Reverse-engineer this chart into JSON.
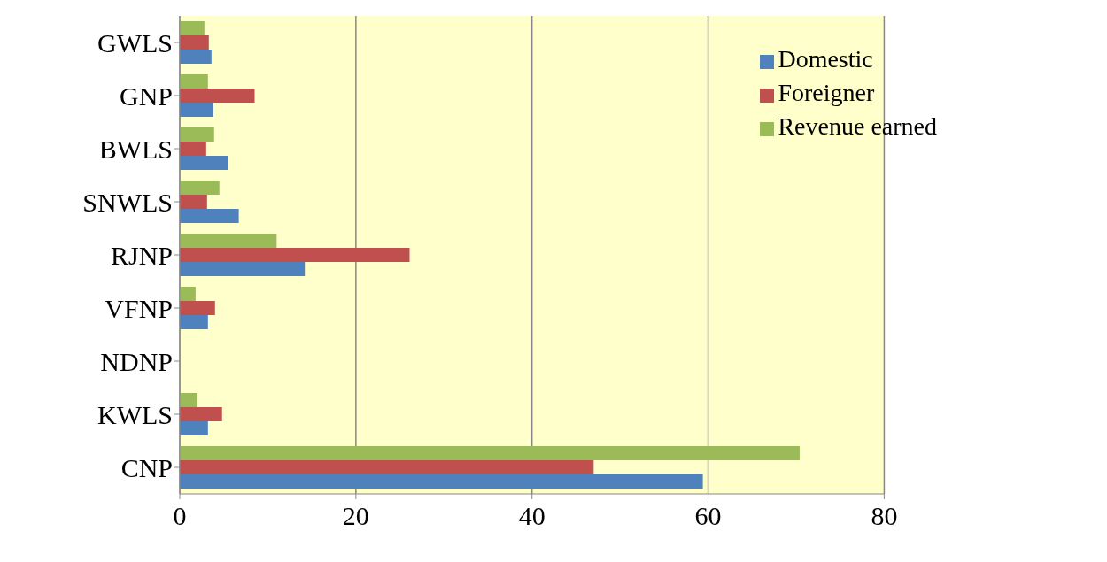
{
  "chart_data": {
    "type": "bar",
    "orientation": "horizontal",
    "categories": [
      "GWLS",
      "GNP",
      "BWLS",
      "SNWLS",
      "RJNP",
      "VFNP",
      "NDNP",
      "KWLS",
      "CNP"
    ],
    "series": [
      {
        "name": "Revenue earned",
        "color": "#9bbb59",
        "values": [
          2.8,
          3.2,
          3.9,
          4.5,
          11.0,
          1.8,
          0,
          2.0,
          70.4
        ]
      },
      {
        "name": "Foreigner",
        "color": "#c0504d",
        "values": [
          3.3,
          8.5,
          3.0,
          3.1,
          26.1,
          4.0,
          0,
          4.8,
          47.0
        ]
      },
      {
        "name": "Domestic",
        "color": "#4f81bd",
        "values": [
          3.6,
          3.8,
          5.5,
          6.7,
          14.2,
          3.2,
          0,
          3.2,
          59.4
        ]
      }
    ],
    "xlim": [
      0,
      80
    ],
    "xticks": [
      0,
      20,
      40,
      60,
      80
    ],
    "grid": "x",
    "legend": "top right"
  }
}
